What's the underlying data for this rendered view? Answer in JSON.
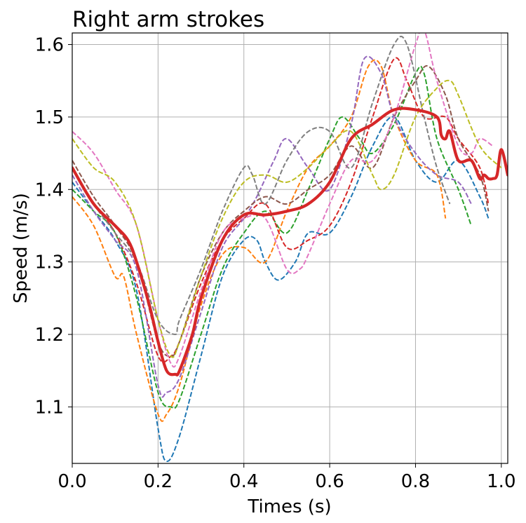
{
  "chart_data": {
    "type": "line",
    "title": "Right arm strokes",
    "xlabel": "Times (s)",
    "ylabel": "Speed (m/s)",
    "xlim": [
      0.0,
      1.015
    ],
    "ylim": [
      1.022,
      1.616
    ],
    "xticks": [
      0.0,
      0.2,
      0.4,
      0.6,
      0.8,
      1.0
    ],
    "xtick_labels": [
      "0.0",
      "0.2",
      "0.4",
      "0.6",
      "0.8",
      "1.0"
    ],
    "yticks": [
      1.1,
      1.2,
      1.3,
      1.4,
      1.5,
      1.6
    ],
    "ytick_labels": [
      "1.1",
      "1.2",
      "1.3",
      "1.4",
      "1.5",
      "1.6"
    ],
    "grid": true,
    "legend": "none",
    "series": [
      {
        "color": "#1f77b4",
        "style": "dashed",
        "x": [
          0.0,
          0.05,
          0.1,
          0.15,
          0.2,
          0.22,
          0.25,
          0.3,
          0.35,
          0.4,
          0.43,
          0.45,
          0.48,
          0.52,
          0.55,
          0.6,
          0.65,
          0.7,
          0.75,
          0.8,
          0.85,
          0.9,
          0.95,
          0.97
        ],
        "y": [
          1.41,
          1.37,
          1.33,
          1.26,
          1.07,
          1.025,
          1.06,
          1.17,
          1.28,
          1.33,
          1.33,
          1.3,
          1.275,
          1.3,
          1.34,
          1.34,
          1.39,
          1.46,
          1.5,
          1.44,
          1.41,
          1.44,
          1.39,
          1.36
        ]
      },
      {
        "color": "#ff7f0e",
        "style": "dashed",
        "x": [
          0.0,
          0.05,
          0.1,
          0.12,
          0.15,
          0.2,
          0.22,
          0.25,
          0.3,
          0.35,
          0.4,
          0.45,
          0.5,
          0.55,
          0.6,
          0.65,
          0.69,
          0.72,
          0.75,
          0.8,
          0.85,
          0.87
        ],
        "y": [
          1.39,
          1.35,
          1.28,
          1.28,
          1.2,
          1.09,
          1.09,
          1.13,
          1.24,
          1.31,
          1.32,
          1.3,
          1.37,
          1.43,
          1.46,
          1.5,
          1.57,
          1.57,
          1.5,
          1.44,
          1.42,
          1.36
        ]
      },
      {
        "color": "#2ca02c",
        "style": "dashed",
        "x": [
          0.0,
          0.05,
          0.1,
          0.15,
          0.2,
          0.23,
          0.25,
          0.3,
          0.35,
          0.4,
          0.45,
          0.5,
          0.55,
          0.6,
          0.63,
          0.67,
          0.7,
          0.75,
          0.8,
          0.82,
          0.85,
          0.9,
          0.93
        ],
        "y": [
          1.4,
          1.37,
          1.34,
          1.25,
          1.12,
          1.1,
          1.11,
          1.2,
          1.29,
          1.34,
          1.37,
          1.34,
          1.4,
          1.47,
          1.5,
          1.47,
          1.45,
          1.49,
          1.56,
          1.56,
          1.47,
          1.4,
          1.35
        ]
      },
      {
        "color": "#d62728",
        "style": "dashed",
        "x": [
          0.0,
          0.05,
          0.1,
          0.15,
          0.2,
          0.23,
          0.25,
          0.3,
          0.35,
          0.4,
          0.45,
          0.5,
          0.55,
          0.6,
          0.65,
          0.7,
          0.75,
          0.78,
          0.82,
          0.87,
          0.9,
          0.95,
          0.97
        ],
        "y": [
          1.43,
          1.38,
          1.34,
          1.27,
          1.17,
          1.17,
          1.19,
          1.27,
          1.33,
          1.36,
          1.38,
          1.32,
          1.33,
          1.35,
          1.41,
          1.5,
          1.58,
          1.55,
          1.5,
          1.5,
          1.47,
          1.43,
          1.38
        ]
      },
      {
        "color": "#9467bd",
        "style": "dashed",
        "x": [
          0.0,
          0.05,
          0.1,
          0.15,
          0.2,
          0.22,
          0.25,
          0.3,
          0.35,
          0.4,
          0.43,
          0.47,
          0.5,
          0.55,
          0.6,
          0.65,
          0.68,
          0.72,
          0.75,
          0.8,
          0.85,
          0.9,
          0.93
        ],
        "y": [
          1.42,
          1.37,
          1.33,
          1.29,
          1.13,
          1.12,
          1.14,
          1.23,
          1.32,
          1.36,
          1.39,
          1.44,
          1.47,
          1.43,
          1.4,
          1.49,
          1.58,
          1.56,
          1.5,
          1.45,
          1.42,
          1.41,
          1.38
        ]
      },
      {
        "color": "#8c564b",
        "style": "dashed",
        "x": [
          0.0,
          0.05,
          0.1,
          0.15,
          0.2,
          0.23,
          0.25,
          0.3,
          0.35,
          0.4,
          0.45,
          0.5,
          0.55,
          0.6,
          0.65,
          0.7,
          0.75,
          0.8,
          0.83,
          0.87,
          0.9,
          0.95,
          0.97
        ],
        "y": [
          1.44,
          1.39,
          1.35,
          1.3,
          1.19,
          1.17,
          1.19,
          1.28,
          1.34,
          1.37,
          1.39,
          1.38,
          1.4,
          1.42,
          1.46,
          1.43,
          1.5,
          1.55,
          1.57,
          1.53,
          1.47,
          1.42,
          1.37
        ]
      },
      {
        "color": "#e377c2",
        "style": "dashed",
        "x": [
          0.0,
          0.05,
          0.1,
          0.15,
          0.2,
          0.23,
          0.25,
          0.3,
          0.35,
          0.4,
          0.45,
          0.5,
          0.53,
          0.55,
          0.6,
          0.65,
          0.7,
          0.75,
          0.8,
          0.82,
          0.85,
          0.9,
          0.93,
          0.95,
          0.98
        ],
        "y": [
          1.48,
          1.45,
          1.4,
          1.35,
          1.22,
          1.16,
          1.17,
          1.26,
          1.34,
          1.36,
          1.36,
          1.29,
          1.29,
          1.31,
          1.38,
          1.44,
          1.44,
          1.5,
          1.6,
          1.62,
          1.55,
          1.46,
          1.45,
          1.47,
          1.46
        ]
      },
      {
        "color": "#7f7f7f",
        "style": "dashed",
        "x": [
          0.0,
          0.05,
          0.1,
          0.15,
          0.2,
          0.24,
          0.25,
          0.3,
          0.35,
          0.4,
          0.42,
          0.45,
          0.5,
          0.55,
          0.6,
          0.65,
          0.7,
          0.75,
          0.78,
          0.82,
          0.85,
          0.88
        ],
        "y": [
          1.43,
          1.38,
          1.34,
          1.3,
          1.22,
          1.2,
          1.22,
          1.29,
          1.37,
          1.43,
          1.42,
          1.38,
          1.44,
          1.48,
          1.48,
          1.43,
          1.52,
          1.6,
          1.6,
          1.5,
          1.43,
          1.38
        ]
      },
      {
        "color": "#bcbd22",
        "style": "dashed",
        "x": [
          0.0,
          0.05,
          0.1,
          0.15,
          0.2,
          0.23,
          0.25,
          0.3,
          0.35,
          0.4,
          0.45,
          0.5,
          0.55,
          0.6,
          0.65,
          0.7,
          0.72,
          0.75,
          0.8,
          0.85,
          0.88,
          0.9,
          0.95,
          1.0
        ],
        "y": [
          1.47,
          1.43,
          1.41,
          1.35,
          1.22,
          1.17,
          1.19,
          1.28,
          1.36,
          1.41,
          1.42,
          1.41,
          1.43,
          1.46,
          1.48,
          1.42,
          1.4,
          1.42,
          1.5,
          1.54,
          1.55,
          1.53,
          1.46,
          1.43
        ]
      },
      {
        "color": "#d62728",
        "style": "solid",
        "width": "bold",
        "x": [
          0.0,
          0.05,
          0.1,
          0.13,
          0.15,
          0.18,
          0.2,
          0.22,
          0.24,
          0.25,
          0.28,
          0.3,
          0.35,
          0.4,
          0.45,
          0.5,
          0.55,
          0.6,
          0.65,
          0.7,
          0.75,
          0.8,
          0.85,
          0.86,
          0.87,
          0.88,
          0.9,
          0.93,
          0.95,
          0.96,
          0.97,
          0.98,
          0.99,
          1.0,
          1.015
        ],
        "y": [
          1.43,
          1.38,
          1.35,
          1.33,
          1.3,
          1.24,
          1.19,
          1.15,
          1.145,
          1.15,
          1.2,
          1.25,
          1.33,
          1.365,
          1.365,
          1.37,
          1.38,
          1.41,
          1.47,
          1.49,
          1.51,
          1.51,
          1.5,
          1.475,
          1.47,
          1.48,
          1.44,
          1.44,
          1.415,
          1.42,
          1.415,
          1.415,
          1.42,
          1.455,
          1.42
        ]
      }
    ]
  }
}
